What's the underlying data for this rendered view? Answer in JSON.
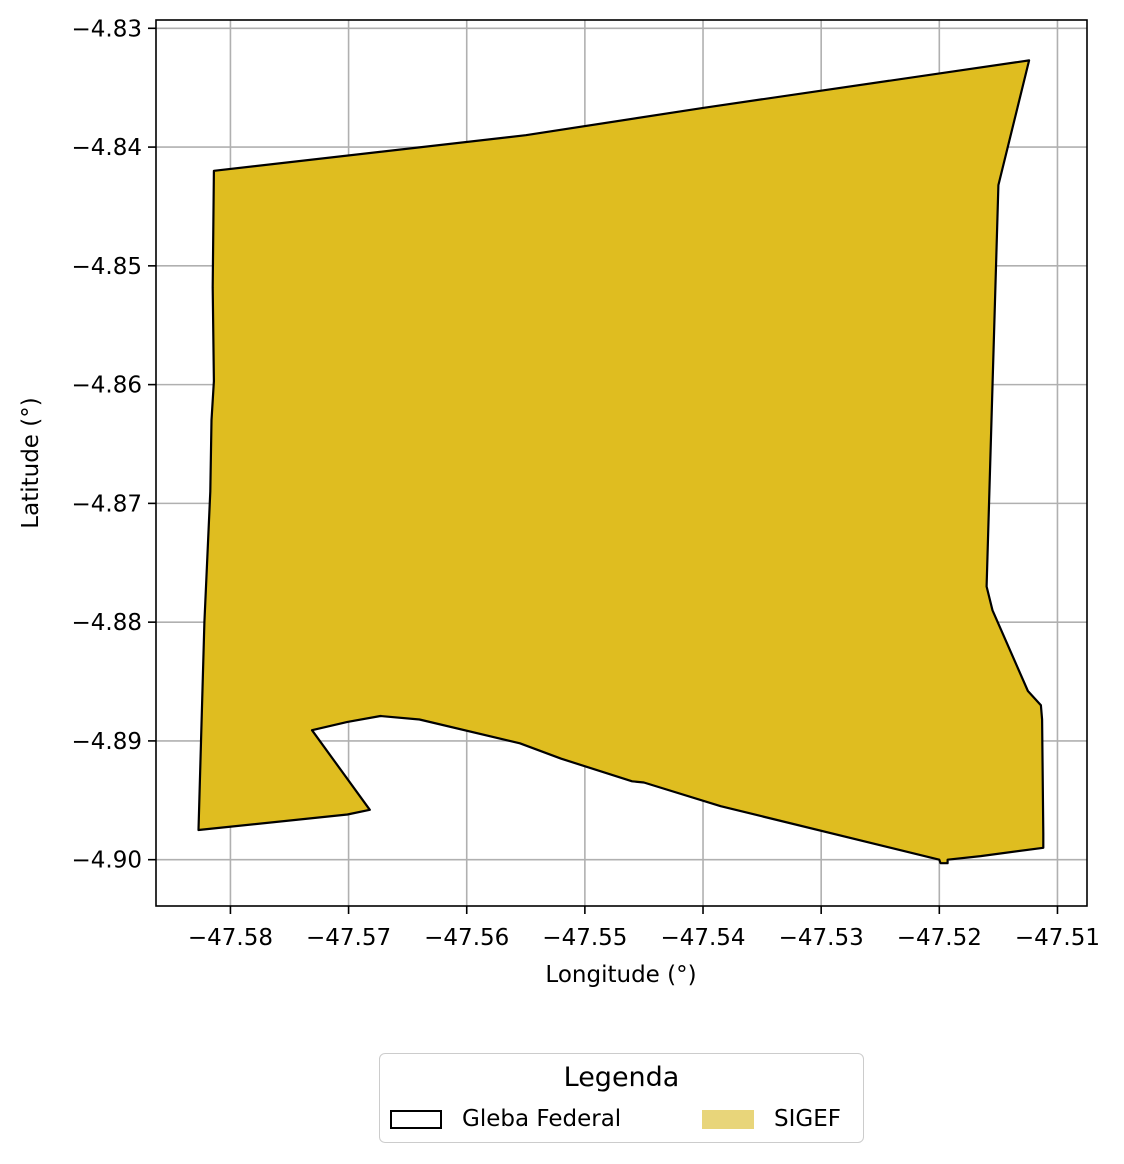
{
  "chart_data": {
    "type": "map",
    "xlabel": "Longitude (°)",
    "ylabel": "Latitude (°)",
    "xlim": [
      -47.5863,
      -47.5075
    ],
    "ylim": [
      -4.9039,
      -4.8293
    ],
    "xticks": [
      -47.58,
      -47.57,
      -47.56,
      -47.55,
      -47.54,
      -47.53,
      -47.52,
      -47.51
    ],
    "yticks": [
      -4.83,
      -4.84,
      -4.85,
      -4.86,
      -4.87,
      -4.88,
      -4.89,
      -4.9
    ],
    "xtick_labels": [
      "−47.58",
      "−47.57",
      "−47.56",
      "−47.55",
      "−47.54",
      "−47.53",
      "−47.52",
      "−47.51"
    ],
    "ytick_labels": [
      "−4.83",
      "−4.84",
      "−4.85",
      "−4.86",
      "−4.87",
      "−4.88",
      "−4.89",
      "−4.90"
    ],
    "grid": true,
    "colors": {
      "sigef_fill": "#dfbd20",
      "gleba_edge": "#000000",
      "grid": "#b0b0b0"
    },
    "polygon": {
      "coordinates": [
        [
          -47.5814,
          -4.842
        ],
        [
          -47.555,
          -4.839
        ],
        [
          -47.54,
          -4.8367
        ],
        [
          -47.5124,
          -4.8327
        ],
        [
          -47.515,
          -4.8432
        ],
        [
          -47.516,
          -4.877
        ],
        [
          -47.5155,
          -4.879
        ],
        [
          -47.5125,
          -4.8858
        ],
        [
          -47.5114,
          -4.887
        ],
        [
          -47.5113,
          -4.8882
        ],
        [
          -47.5112,
          -4.8978
        ],
        [
          -47.5112,
          -4.899
        ],
        [
          -47.5165,
          -4.8997
        ],
        [
          -47.5193,
          -4.9
        ],
        [
          -47.5193,
          -4.9003
        ],
        [
          -47.5199,
          -4.9003
        ],
        [
          -47.52,
          -4.9
        ],
        [
          -47.5385,
          -4.8955
        ],
        [
          -47.545,
          -4.8935
        ],
        [
          -47.546,
          -4.8934
        ],
        [
          -47.552,
          -4.8915
        ],
        [
          -47.5555,
          -4.8902
        ],
        [
          -47.564,
          -4.8882
        ],
        [
          -47.5673,
          -4.8879
        ],
        [
          -47.5701,
          -4.8884
        ],
        [
          -47.5731,
          -4.8891
        ],
        [
          -47.5682,
          -4.8958
        ],
        [
          -47.5701,
          -4.8962
        ],
        [
          -47.5827,
          -4.8975
        ],
        [
          -47.5822,
          -4.88
        ],
        [
          -47.5817,
          -4.869
        ],
        [
          -47.5816,
          -4.863
        ],
        [
          -47.5814,
          -4.8597
        ],
        [
          -47.5815,
          -4.8518
        ],
        [
          -47.5814,
          -4.842
        ]
      ]
    }
  },
  "legend": {
    "title": "Legenda",
    "items": [
      {
        "label": "Gleba Federal",
        "style": "outline"
      },
      {
        "label": "SIGEF",
        "color": "#e8d57a"
      }
    ]
  }
}
